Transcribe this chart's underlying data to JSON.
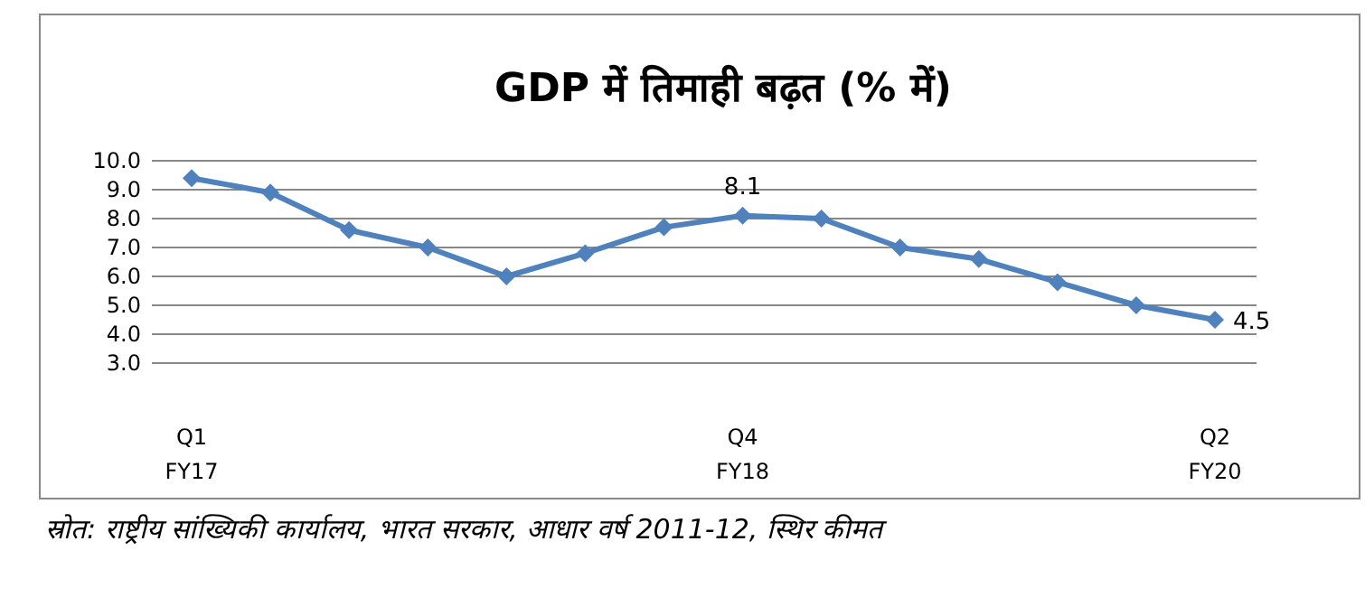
{
  "chart_data": {
    "type": "line",
    "title": "GDP में तिमाही बढ़त (% में)",
    "categories": [
      "Q1\nFY17",
      null,
      null,
      null,
      null,
      null,
      null,
      "Q4\nFY18",
      null,
      null,
      null,
      null,
      null,
      "Q2\nFY20"
    ],
    "series": [
      {
        "color": "#4f81bd",
        "values": [
          9.4,
          8.9,
          7.6,
          7.0,
          6.0,
          6.8,
          7.7,
          8.1,
          8.0,
          7.0,
          6.6,
          5.8,
          5.0,
          4.5
        ],
        "value_labels": [
          null,
          null,
          null,
          null,
          null,
          null,
          null,
          "8.1",
          null,
          null,
          null,
          null,
          null,
          "4.5"
        ]
      }
    ],
    "ylim": [
      3,
      10
    ],
    "yticks": [
      {
        "value": 3,
        "label": "3.0"
      },
      {
        "value": 4,
        "label": "4.0"
      },
      {
        "value": 5,
        "label": "5.0"
      },
      {
        "value": 6,
        "label": "6.0"
      },
      {
        "value": 7,
        "label": "7.0"
      },
      {
        "value": 8,
        "label": "8.0"
      },
      {
        "value": 9,
        "label": "9.0"
      },
      {
        "value": 10,
        "label": "10.0"
      }
    ],
    "grid": "y",
    "marker": "diamond",
    "line_style": "solid",
    "annotations": [
      "स्रोत: राष्ट्रीय सांख्यिकी कार्यालय, भारत सरकार, आधार वर्ष 2011-12, स्थिर कीमत"
    ]
  }
}
